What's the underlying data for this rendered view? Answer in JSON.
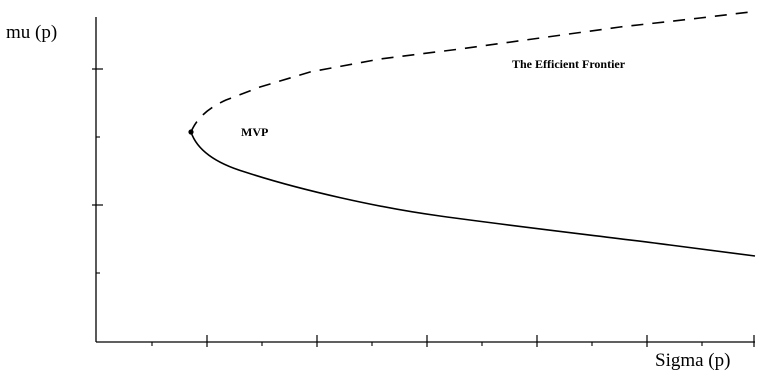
{
  "y_axis_label": "mu (p)",
  "x_axis_label": "Sigma (p)",
  "mvp_label": "MVP",
  "efficient_frontier_label": "The Efficient Frontier",
  "colors": {
    "ink": "#000000",
    "background": "#ffffff"
  },
  "curve_styles": {
    "efficient_frontier": "dashed",
    "inefficient_branch": "solid"
  }
}
